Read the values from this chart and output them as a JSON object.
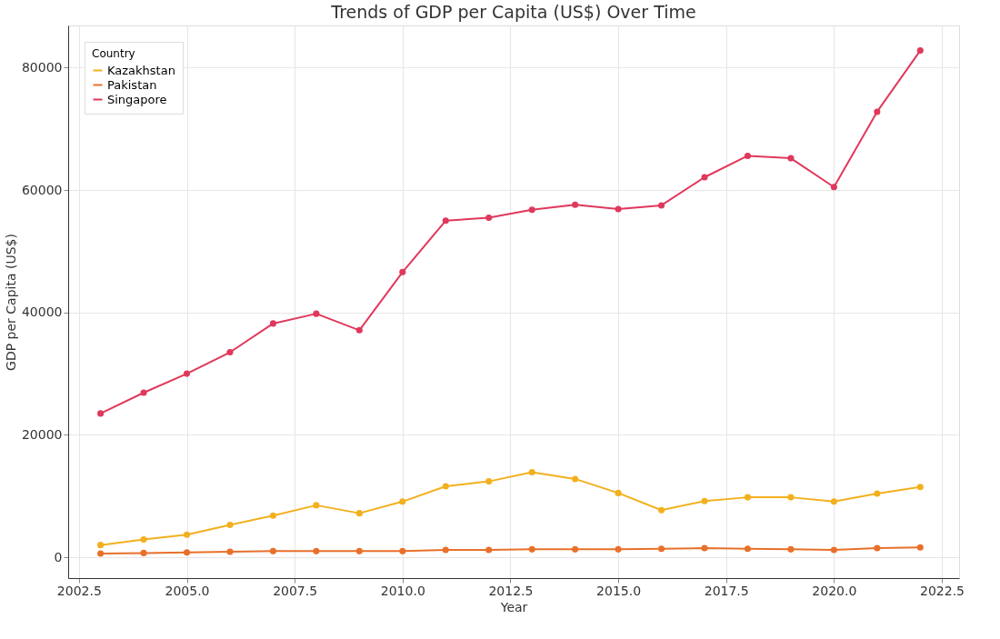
{
  "chart_data": {
    "type": "line",
    "title": "Trends of GDP per Capita (US$) Over Time",
    "xlabel": "Year",
    "ylabel": "GDP per Capita (US$)",
    "legend_title": "Country",
    "x": [
      2003,
      2004,
      2005,
      2006,
      2007,
      2008,
      2009,
      2010,
      2011,
      2012,
      2013,
      2014,
      2015,
      2016,
      2017,
      2018,
      2019,
      2020,
      2021,
      2022
    ],
    "series": [
      {
        "name": "Kazakhstan",
        "color": "#f2b01e",
        "values": [
          2000,
          2900,
          3700,
          5300,
          6800,
          8500,
          7200,
          9100,
          11600,
          12400,
          13900,
          12800,
          10500,
          7700,
          9200,
          9800,
          9800,
          9100,
          10400,
          11500
        ]
      },
      {
        "name": "Pakistan",
        "color": "#e8702a",
        "values": [
          600,
          700,
          800,
          900,
          1000,
          1000,
          1000,
          1000,
          1200,
          1200,
          1300,
          1300,
          1300,
          1400,
          1500,
          1400,
          1300,
          1200,
          1500,
          1600
        ]
      },
      {
        "name": "Singapore",
        "color": "#e0385c",
        "values": [
          23500,
          26900,
          30000,
          33500,
          38200,
          39800,
          37100,
          46600,
          55000,
          55500,
          56800,
          57600,
          56900,
          57500,
          62100,
          65600,
          65200,
          60500,
          72800,
          82800
        ]
      }
    ],
    "xlim": [
      2002.25,
      2022.9
    ],
    "ylim": [
      -3400,
      86900
    ],
    "xticks": [
      {
        "value": 2002.5,
        "label": "2002.5"
      },
      {
        "value": 2005,
        "label": "2005.0"
      },
      {
        "value": 2007.5,
        "label": "2007.5"
      },
      {
        "value": 2010,
        "label": "2010.0"
      },
      {
        "value": 2012.5,
        "label": "2012.5"
      },
      {
        "value": 2015,
        "label": "2015.0"
      },
      {
        "value": 2017.5,
        "label": "2017.5"
      },
      {
        "value": 2020,
        "label": "2020.0"
      },
      {
        "value": 2022.5,
        "label": "2022.5"
      }
    ],
    "yticks": [
      0,
      20000,
      40000,
      60000,
      80000
    ],
    "grid": true,
    "legend": "top left",
    "marker": "circle",
    "line_style": "solid"
  }
}
